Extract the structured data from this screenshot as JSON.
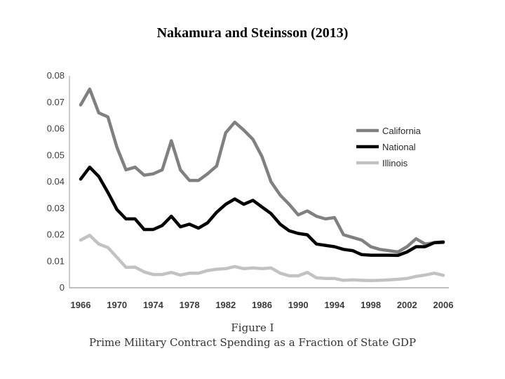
{
  "slide": {
    "title": "Nakamura and Steinsson (2013)"
  },
  "chart_data": {
    "type": "line",
    "title": "",
    "figure_label": "Figure I",
    "caption": "Prime Military Contract Spending as a Fraction of State GDP",
    "xlabel": "",
    "ylabel": "",
    "ylim": [
      0,
      0.08
    ],
    "xlim": [
      1966,
      2006
    ],
    "y_ticks": [
      "0",
      "0.01",
      "0.02",
      "0.03",
      "0.04",
      "0.05",
      "0.06",
      "0.07",
      "0.08"
    ],
    "x_ticks": [
      "1966",
      "1970",
      "1974",
      "1978",
      "1982",
      "1986",
      "1990",
      "1994",
      "1998",
      "2002",
      "2006"
    ],
    "grid": false,
    "legend_position": "right",
    "x": [
      1966,
      1967,
      1968,
      1969,
      1970,
      1971,
      1972,
      1973,
      1974,
      1975,
      1976,
      1977,
      1978,
      1979,
      1980,
      1981,
      1982,
      1983,
      1984,
      1985,
      1986,
      1987,
      1988,
      1989,
      1990,
      1991,
      1992,
      1993,
      1994,
      1995,
      1996,
      1997,
      1998,
      1999,
      2000,
      2001,
      2002,
      2003,
      2004,
      2005,
      2006
    ],
    "series": [
      {
        "name": "California",
        "color": "#808080",
        "values": [
          0.069,
          0.075,
          0.066,
          0.0645,
          0.053,
          0.0445,
          0.0455,
          0.0425,
          0.043,
          0.0445,
          0.0555,
          0.0445,
          0.0405,
          0.0405,
          0.043,
          0.046,
          0.0585,
          0.0625,
          0.0595,
          0.056,
          0.0495,
          0.04,
          0.035,
          0.0315,
          0.0275,
          0.029,
          0.027,
          0.026,
          0.0265,
          0.02,
          0.019,
          0.018,
          0.0155,
          0.0145,
          0.014,
          0.0135,
          0.0155,
          0.0185,
          0.0165,
          0.017,
          0.017
        ]
      },
      {
        "name": "National",
        "color": "#000000",
        "values": [
          0.041,
          0.0455,
          0.042,
          0.036,
          0.0295,
          0.026,
          0.026,
          0.022,
          0.022,
          0.0235,
          0.027,
          0.023,
          0.024,
          0.0225,
          0.0245,
          0.0285,
          0.0315,
          0.0335,
          0.0315,
          0.033,
          0.0305,
          0.028,
          0.024,
          0.0215,
          0.0205,
          0.02,
          0.0165,
          0.016,
          0.0155,
          0.0145,
          0.014,
          0.0125,
          0.0123,
          0.0123,
          0.0123,
          0.0122,
          0.0135,
          0.0155,
          0.0155,
          0.017,
          0.0173
        ]
      },
      {
        "name": "Illinois",
        "color": "#c2c2c2",
        "values": [
          0.018,
          0.0198,
          0.0165,
          0.0152,
          0.0115,
          0.0077,
          0.0078,
          0.006,
          0.005,
          0.005,
          0.0058,
          0.0048,
          0.0055,
          0.0055,
          0.0065,
          0.007,
          0.0072,
          0.008,
          0.0072,
          0.0075,
          0.0072,
          0.0075,
          0.0055,
          0.0045,
          0.0045,
          0.0058,
          0.0038,
          0.0035,
          0.0035,
          0.0028,
          0.003,
          0.0028,
          0.0027,
          0.0028,
          0.003,
          0.0032,
          0.0035,
          0.0043,
          0.0048,
          0.0055,
          0.0047
        ]
      }
    ]
  }
}
